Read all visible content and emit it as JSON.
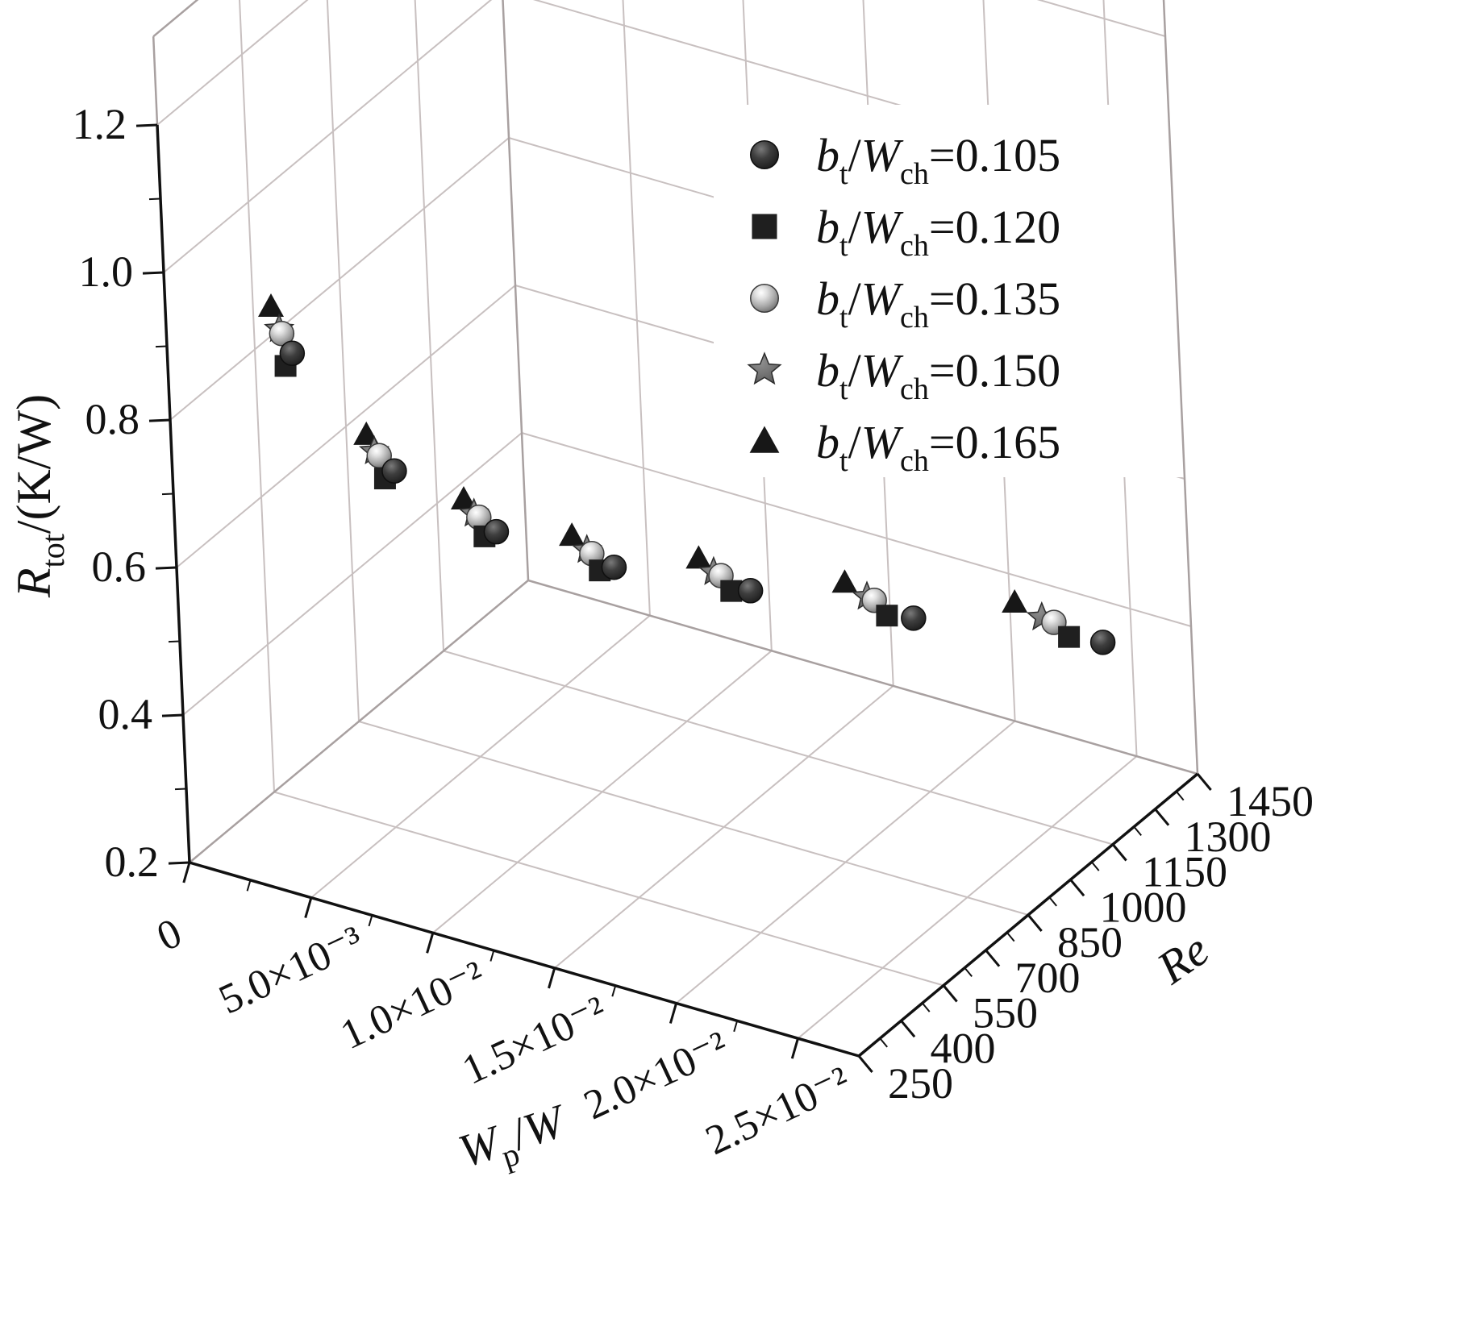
{
  "figure": {
    "kind": "3d-scatter-plot",
    "background": "#ffffff"
  },
  "chart_data": {
    "type": "scatter",
    "projection": "3d",
    "title": "",
    "axes": {
      "z": {
        "title_parts": [
          {
            "t": "R",
            "i": 1
          },
          {
            "t": "tot",
            "s": 1
          },
          {
            "t": "/(K/W)"
          }
        ],
        "title_plain": "Rtot/(K/W)",
        "range": [
          0.2,
          1.2
        ],
        "tick_values": [
          0.2,
          0.4,
          0.6,
          0.8,
          1.0,
          1.2
        ],
        "tick_labels": [
          "0.2",
          "0.4",
          "0.6",
          "0.8",
          "1.0",
          "1.2"
        ]
      },
      "x": {
        "title_parts": [
          {
            "t": "W",
            "i": 1
          },
          {
            "t": "p",
            "s": 1
          },
          {
            "t": "/"
          },
          {
            "t": "W",
            "i": 1
          }
        ],
        "title_plain": "Wp/W",
        "range": [
          0,
          0.0275
        ],
        "tick_values": [
          0,
          0.005,
          0.01,
          0.015,
          0.02,
          0.025
        ],
        "tick_labels": [
          "0",
          "5.0×10⁻³",
          "1.0×10⁻²",
          "1.5×10⁻²",
          "2.0×10⁻²",
          "2.5×10⁻²"
        ]
      },
      "y": {
        "title_parts": [
          {
            "t": "Re",
            "i": 1
          }
        ],
        "title_plain": "Re",
        "range": [
          250,
          1450
        ],
        "tick_values": [
          250,
          400,
          550,
          700,
          850,
          1000,
          1150,
          1300,
          1450
        ],
        "tick_labels": [
          "250",
          "400",
          "550",
          "700",
          "850",
          "1000",
          "1150",
          "1300",
          "1450"
        ]
      }
    },
    "grid": {
      "on": true,
      "wall_re_lines": [
        550,
        850,
        1150
      ],
      "color": "#c8c0c0"
    },
    "legend": {
      "position": "top-right",
      "entries": [
        {
          "marker": "circle",
          "label_plain": "bt/Wch=0.105",
          "parts": [
            {
              "t": "b",
              "i": 1
            },
            {
              "t": "t",
              "s": 1
            },
            {
              "t": "/",
              "i": 0
            },
            {
              "t": "W",
              "i": 1
            },
            {
              "t": "ch",
              "s": 1
            },
            {
              "t": "=0.105"
            }
          ]
        },
        {
          "marker": "square",
          "label_plain": "bt/Wch=0.120",
          "parts": [
            {
              "t": "b",
              "i": 1
            },
            {
              "t": "t",
              "s": 1
            },
            {
              "t": "/",
              "i": 0
            },
            {
              "t": "W",
              "i": 1
            },
            {
              "t": "ch",
              "s": 1
            },
            {
              "t": "=0.120"
            }
          ]
        },
        {
          "marker": "sphere",
          "label_plain": "bt/Wch=0.135",
          "parts": [
            {
              "t": "b",
              "i": 1
            },
            {
              "t": "t",
              "s": 1
            },
            {
              "t": "/",
              "i": 0
            },
            {
              "t": "W",
              "i": 1
            },
            {
              "t": "ch",
              "s": 1
            },
            {
              "t": "=0.135"
            }
          ]
        },
        {
          "marker": "star",
          "label_plain": "bt/Wch=0.150",
          "parts": [
            {
              "t": "b",
              "i": 1
            },
            {
              "t": "t",
              "s": 1
            },
            {
              "t": "/",
              "i": 0
            },
            {
              "t": "W",
              "i": 1
            },
            {
              "t": "ch",
              "s": 1
            },
            {
              "t": "=0.150"
            }
          ]
        },
        {
          "marker": "triangle",
          "label_plain": "bt/Wch=0.165",
          "parts": [
            {
              "t": "b",
              "i": 1
            },
            {
              "t": "t",
              "s": 1
            },
            {
              "t": "/",
              "i": 0
            },
            {
              "t": "W",
              "i": 1
            },
            {
              "t": "ch",
              "s": 1
            },
            {
              "t": "=0.165"
            }
          ]
        }
      ]
    },
    "series": [
      {
        "name": "bt/Wch=0.105",
        "marker": "circle",
        "color": "#3c3c3c",
        "points": [
          {
            "wp_w": 0.0052,
            "re": 250,
            "rtot": 0.94
          },
          {
            "wp_w": 0.0068,
            "re": 450,
            "rtot": 0.732
          },
          {
            "wp_w": 0.0085,
            "re": 650,
            "rtot": 0.602
          },
          {
            "wp_w": 0.0109,
            "re": 850,
            "rtot": 0.513
          },
          {
            "wp_w": 0.0141,
            "re": 1050,
            "rtot": 0.448
          },
          {
            "wp_w": 0.0184,
            "re": 1250,
            "rtot": 0.388
          },
          {
            "wp_w": 0.0238,
            "re": 1450,
            "rtot": 0.343
          }
        ]
      },
      {
        "name": "bt/Wch=0.120",
        "marker": "square",
        "color": "#1f1f1f",
        "points": [
          {
            "wp_w": 0.0049,
            "re": 250,
            "rtot": 0.92
          },
          {
            "wp_w": 0.0064,
            "re": 450,
            "rtot": 0.718
          },
          {
            "wp_w": 0.008,
            "re": 650,
            "rtot": 0.591
          },
          {
            "wp_w": 0.0103,
            "re": 850,
            "rtot": 0.503
          },
          {
            "wp_w": 0.0133,
            "re": 1050,
            "rtot": 0.44
          },
          {
            "wp_w": 0.0173,
            "re": 1250,
            "rtot": 0.381
          },
          {
            "wp_w": 0.0224,
            "re": 1450,
            "rtot": 0.337
          }
        ]
      },
      {
        "name": "bt/Wch=0.135",
        "marker": "sphere",
        "color": "#9a9a9a",
        "points": [
          {
            "wp_w": 0.0048,
            "re": 250,
            "rtot": 0.963
          },
          {
            "wp_w": 0.0062,
            "re": 450,
            "rtot": 0.747
          },
          {
            "wp_w": 0.0078,
            "re": 650,
            "rtot": 0.615
          },
          {
            "wp_w": 0.01,
            "re": 850,
            "rtot": 0.523
          },
          {
            "wp_w": 0.0129,
            "re": 1050,
            "rtot": 0.457
          },
          {
            "wp_w": 0.0168,
            "re": 1250,
            "rtot": 0.397
          },
          {
            "wp_w": 0.0218,
            "re": 1450,
            "rtot": 0.351
          }
        ]
      },
      {
        "name": "bt/Wch=0.150",
        "marker": "star",
        "color": "#6e6e6e",
        "points": [
          {
            "wp_w": 0.0047,
            "re": 250,
            "rtot": 0.968
          },
          {
            "wp_w": 0.006,
            "re": 450,
            "rtot": 0.751
          },
          {
            "wp_w": 0.0076,
            "re": 650,
            "rtot": 0.618
          },
          {
            "wp_w": 0.0098,
            "re": 850,
            "rtot": 0.526
          },
          {
            "wp_w": 0.0126,
            "re": 1050,
            "rtot": 0.459
          },
          {
            "wp_w": 0.0165,
            "re": 1250,
            "rtot": 0.399
          },
          {
            "wp_w": 0.0213,
            "re": 1450,
            "rtot": 0.353
          }
        ]
      },
      {
        "name": "bt/Wch=0.165",
        "marker": "triangle",
        "color": "#171717",
        "points": [
          {
            "wp_w": 0.0044,
            "re": 250,
            "rtot": 0.995
          },
          {
            "wp_w": 0.0057,
            "re": 450,
            "rtot": 0.77
          },
          {
            "wp_w": 0.0072,
            "re": 650,
            "rtot": 0.633
          },
          {
            "wp_w": 0.0092,
            "re": 850,
            "rtot": 0.539
          },
          {
            "wp_w": 0.012,
            "re": 1050,
            "rtot": 0.471
          },
          {
            "wp_w": 0.0156,
            "re": 1250,
            "rtot": 0.409
          },
          {
            "wp_w": 0.0202,
            "re": 1450,
            "rtot": 0.362
          }
        ]
      }
    ],
    "colors": {
      "grid": "#c8c0c0",
      "box_edge": "#a8a0a0",
      "axis": "#111111",
      "legend_background": "#ffffff"
    }
  }
}
